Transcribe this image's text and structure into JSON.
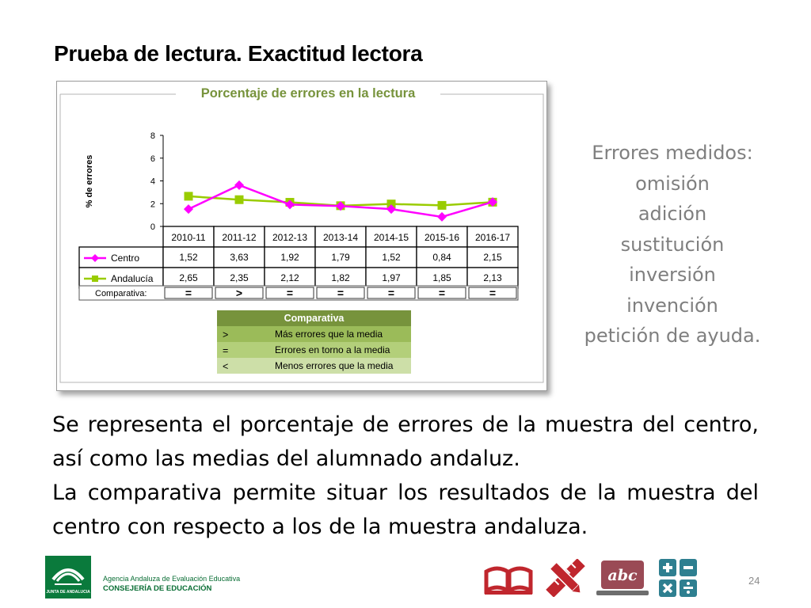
{
  "slide": {
    "title": "Prueba de lectura. Exactitud lectora",
    "page_number": "24"
  },
  "error_types": {
    "heading": "Errores medidos:",
    "items": [
      "omisión",
      "adición",
      "sustitución",
      "inversión",
      "invención",
      "petición de ayuda."
    ]
  },
  "description": {
    "paragraphs": [
      "Se representa el porcentaje de errores de la muestra del centro, así como las medias del alumnado andaluz.",
      "La comparativa permite situar los resultados de la muestra del centro con respecto a los de la muestra andaluza."
    ]
  },
  "footer": {
    "logo_caption": "JUNTA DE ANDALUCIA",
    "agency": "Agencia Andaluza de Evaluación Educativa",
    "department": "CONSEJERÍA DE EDUCACIÓN",
    "icons": [
      "open-book-icon",
      "pencil-ruler-icon",
      "abc-tablet-icon",
      "calculator-icon"
    ]
  },
  "colors": {
    "centro": "#ff00ff",
    "andalucia": "#99cc00",
    "legend_header_bg": "#77933c",
    "legend_row1_bg": "#9bbb59",
    "legend_row2_bg": "#b3cf7a",
    "legend_row3_bg": "#cddfa8",
    "chart_title": "#77933c",
    "footer_green": "#0a7a3c"
  },
  "chart_data": {
    "type": "line",
    "title": "Porcentaje de errores en la lectura",
    "ylabel": "% de errores",
    "ylim": [
      0,
      8
    ],
    "yticks": [
      0,
      2,
      4,
      6,
      8
    ],
    "grid": false,
    "categories": [
      "2010-11",
      "2011-12",
      "2012-13",
      "2013-14",
      "2014-15",
      "2015-16",
      "2016-17"
    ],
    "series": [
      {
        "name": "Centro",
        "marker": "diamond",
        "values": [
          1.52,
          3.63,
          1.92,
          1.79,
          1.52,
          0.84,
          2.15
        ],
        "labels": [
          "1,52",
          "3,63",
          "1,92",
          "1,79",
          "1,52",
          "0,84",
          "2,15"
        ]
      },
      {
        "name": "Andalucía",
        "marker": "square",
        "values": [
          2.65,
          2.35,
          2.12,
          1.82,
          1.97,
          1.85,
          2.13
        ],
        "labels": [
          "2,65",
          "2,35",
          "2,12",
          "1,82",
          "1,97",
          "1,85",
          "2,13"
        ]
      }
    ],
    "comparison": {
      "label": "Comparativa:",
      "values": [
        "=",
        ">",
        "=",
        "=",
        "=",
        "=",
        "="
      ]
    },
    "legend_table": {
      "header": "Comparativa",
      "rows": [
        {
          "symbol": ">",
          "text": "Más errores que la media"
        },
        {
          "symbol": "=",
          "text": "Errores en torno a la media"
        },
        {
          "symbol": "<",
          "text": "Menos errores que la media"
        }
      ]
    }
  }
}
